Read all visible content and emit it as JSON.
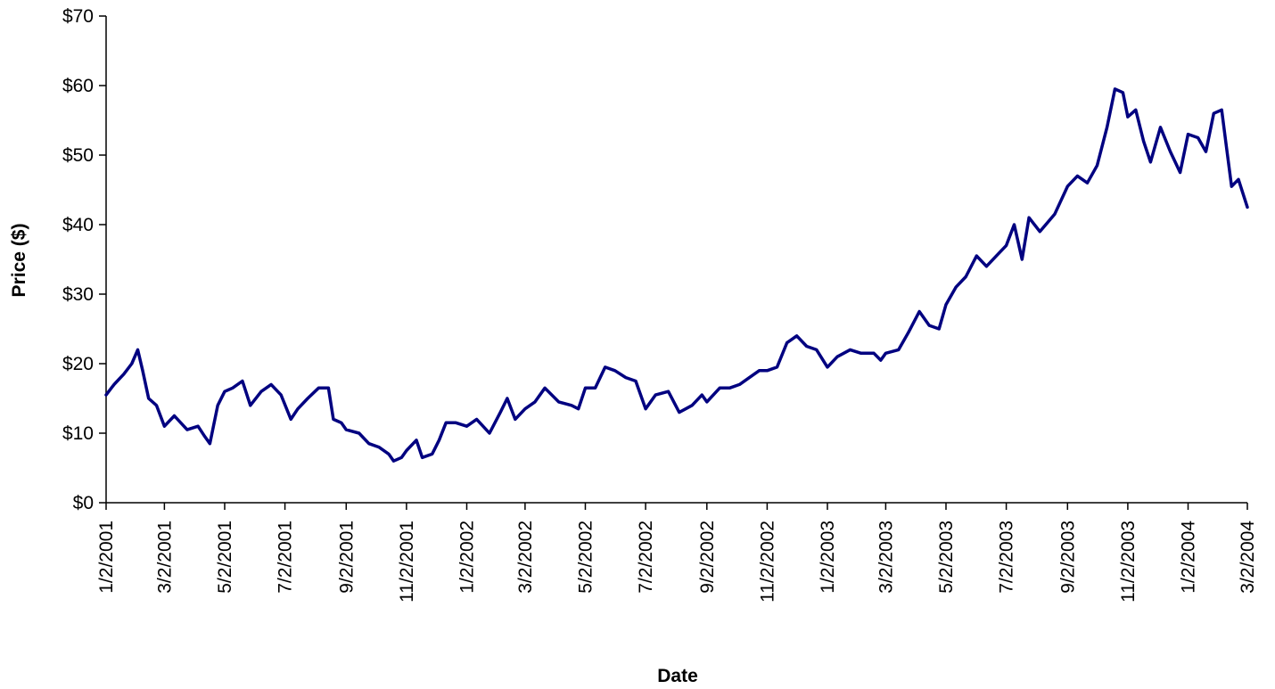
{
  "chart_data": {
    "type": "line",
    "title": "",
    "xlabel": "Date",
    "ylabel": "Price ($)",
    "ylim": [
      0,
      70
    ],
    "y_ticks": [
      0,
      10,
      20,
      30,
      40,
      50,
      60,
      70
    ],
    "y_tick_labels": [
      "$0",
      "$10",
      "$20",
      "$30",
      "$40",
      "$50",
      "$60",
      "$70"
    ],
    "x_tick_labels": [
      "1/2/2001",
      "3/2/2001",
      "5/2/2001",
      "7/2/2001",
      "9/2/2001",
      "11/2/2001",
      "1/2/2002",
      "3/2/2002",
      "5/2/2002",
      "7/2/2002",
      "9/2/2002",
      "11/2/2002",
      "1/2/2003",
      "3/2/2003",
      "5/2/2003",
      "7/2/2003",
      "9/2/2003",
      "11/2/2003",
      "1/2/2004",
      "3/2/2004"
    ],
    "grid": false,
    "legend": "none",
    "colors": {
      "line": "#000080",
      "axis": "#000000"
    },
    "series": [
      {
        "points": [
          [
            "1/2/2001",
            15.5
          ],
          [
            "1/10/2001",
            17.0
          ],
          [
            "1/20/2001",
            18.5
          ],
          [
            "1/28/2001",
            20.0
          ],
          [
            "2/3/2001",
            22.0
          ],
          [
            "2/8/2001",
            19.0
          ],
          [
            "2/14/2001",
            15.0
          ],
          [
            "2/22/2001",
            14.0
          ],
          [
            "3/2/2001",
            11.0
          ],
          [
            "3/12/2001",
            12.5
          ],
          [
            "3/25/2001",
            10.5
          ],
          [
            "4/5/2001",
            11.0
          ],
          [
            "4/12/2001",
            9.5
          ],
          [
            "4/17/2001",
            8.5
          ],
          [
            "4/25/2001",
            14.0
          ],
          [
            "5/2/2001",
            16.0
          ],
          [
            "5/10/2001",
            16.5
          ],
          [
            "5/20/2001",
            17.5
          ],
          [
            "5/28/2001",
            14.0
          ],
          [
            "6/8/2001",
            16.0
          ],
          [
            "6/18/2001",
            17.0
          ],
          [
            "6/28/2001",
            15.5
          ],
          [
            "7/8/2001",
            12.0
          ],
          [
            "7/15/2001",
            13.5
          ],
          [
            "7/25/2001",
            15.0
          ],
          [
            "8/5/2001",
            16.5
          ],
          [
            "8/15/2001",
            16.5
          ],
          [
            "8/20/2001",
            12.0
          ],
          [
            "8/28/2001",
            11.5
          ],
          [
            "9/2/2001",
            10.5
          ],
          [
            "9/15/2001",
            10.0
          ],
          [
            "9/25/2001",
            8.5
          ],
          [
            "10/5/2001",
            8.0
          ],
          [
            "10/15/2001",
            7.0
          ],
          [
            "10/20/2001",
            6.0
          ],
          [
            "10/28/2001",
            6.5
          ],
          [
            "11/2/2001",
            7.5
          ],
          [
            "11/12/2001",
            9.0
          ],
          [
            "11/18/2001",
            6.5
          ],
          [
            "11/28/2001",
            7.0
          ],
          [
            "12/5/2001",
            9.0
          ],
          [
            "12/12/2001",
            11.5
          ],
          [
            "12/22/2001",
            11.5
          ],
          [
            "1/2/2002",
            11.0
          ],
          [
            "1/12/2002",
            12.0
          ],
          [
            "1/25/2002",
            10.0
          ],
          [
            "2/5/2002",
            13.0
          ],
          [
            "2/12/2002",
            15.0
          ],
          [
            "2/20/2002",
            12.0
          ],
          [
            "3/2/2002",
            13.5
          ],
          [
            "3/12/2002",
            14.5
          ],
          [
            "3/22/2002",
            16.5
          ],
          [
            "4/5/2002",
            14.5
          ],
          [
            "4/18/2002",
            14.0
          ],
          [
            "4/25/2002",
            13.5
          ],
          [
            "5/2/2002",
            16.5
          ],
          [
            "5/12/2002",
            16.5
          ],
          [
            "5/22/2002",
            19.5
          ],
          [
            "6/1/2002",
            19.0
          ],
          [
            "6/12/2002",
            18.0
          ],
          [
            "6/22/2002",
            17.5
          ],
          [
            "7/2/2002",
            13.5
          ],
          [
            "7/12/2002",
            15.5
          ],
          [
            "7/25/2002",
            16.0
          ],
          [
            "8/5/2002",
            13.0
          ],
          [
            "8/18/2002",
            14.0
          ],
          [
            "8/28/2002",
            15.5
          ],
          [
            "9/2/2002",
            14.5
          ],
          [
            "9/15/2002",
            16.5
          ],
          [
            "9/25/2002",
            16.5
          ],
          [
            "10/5/2002",
            17.0
          ],
          [
            "10/15/2002",
            18.0
          ],
          [
            "10/25/2002",
            19.0
          ],
          [
            "11/2/2002",
            19.0
          ],
          [
            "11/12/2002",
            19.5
          ],
          [
            "11/22/2002",
            23.0
          ],
          [
            "12/2/2002",
            24.0
          ],
          [
            "12/12/2002",
            22.5
          ],
          [
            "12/22/2002",
            22.0
          ],
          [
            "1/2/2003",
            19.5
          ],
          [
            "1/12/2003",
            21.0
          ],
          [
            "1/25/2003",
            22.0
          ],
          [
            "2/5/2003",
            21.5
          ],
          [
            "2/18/2003",
            21.5
          ],
          [
            "2/25/2003",
            20.5
          ],
          [
            "3/2/2003",
            21.5
          ],
          [
            "3/15/2003",
            22.0
          ],
          [
            "3/25/2003",
            24.5
          ],
          [
            "4/5/2003",
            27.5
          ],
          [
            "4/15/2003",
            25.5
          ],
          [
            "4/25/2003",
            25.0
          ],
          [
            "5/2/2003",
            28.5
          ],
          [
            "5/12/2003",
            31.0
          ],
          [
            "5/22/2003",
            32.5
          ],
          [
            "6/2/2003",
            35.5
          ],
          [
            "6/12/2003",
            34.0
          ],
          [
            "6/22/2003",
            35.5
          ],
          [
            "7/2/2003",
            37.0
          ],
          [
            "7/10/2003",
            40.0
          ],
          [
            "7/18/2003",
            35.0
          ],
          [
            "7/25/2003",
            41.0
          ],
          [
            "8/5/2003",
            39.0
          ],
          [
            "8/20/2003",
            41.5
          ],
          [
            "9/2/2003",
            45.5
          ],
          [
            "9/12/2003",
            47.0
          ],
          [
            "9/22/2003",
            46.0
          ],
          [
            "10/2/2003",
            48.5
          ],
          [
            "10/12/2003",
            54.0
          ],
          [
            "10/20/2003",
            59.5
          ],
          [
            "10/28/2003",
            59.0
          ],
          [
            "11/2/2003",
            55.5
          ],
          [
            "11/10/2003",
            56.5
          ],
          [
            "11/18/2003",
            52.0
          ],
          [
            "11/25/2003",
            49.0
          ],
          [
            "12/5/2003",
            54.0
          ],
          [
            "12/15/2003",
            50.5
          ],
          [
            "12/25/2003",
            47.5
          ],
          [
            "1/2/2004",
            53.0
          ],
          [
            "1/12/2004",
            52.5
          ],
          [
            "1/20/2004",
            50.5
          ],
          [
            "1/28/2004",
            56.0
          ],
          [
            "2/5/2004",
            56.5
          ],
          [
            "2/10/2004",
            51.0
          ],
          [
            "2/15/2004",
            45.5
          ],
          [
            "2/22/2004",
            46.5
          ],
          [
            "3/2/2004",
            42.5
          ]
        ]
      }
    ]
  }
}
